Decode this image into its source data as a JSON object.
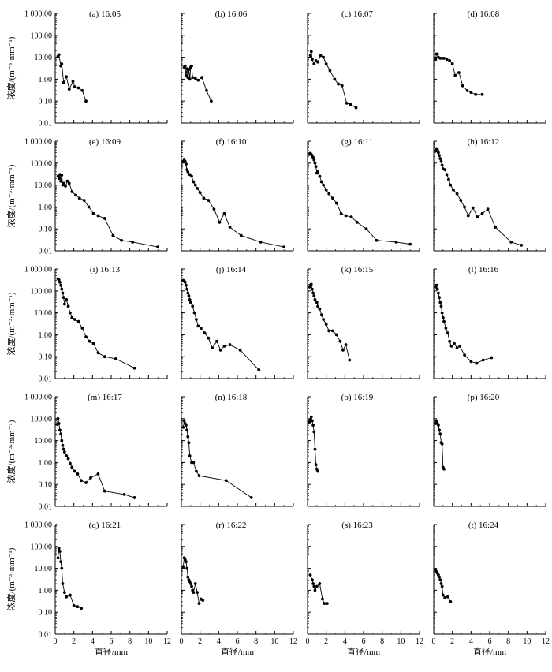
{
  "figure": {
    "ylabel": "浓度/(m⁻³·mm⁻¹)",
    "xlabel": "直径/mm",
    "y_ticks": [
      "1 000.00",
      "100.00",
      "10.00",
      "1.00",
      "0.10",
      "0.01"
    ],
    "x_ticks": [
      "0",
      "2",
      "4",
      "6",
      "8",
      "10",
      "12"
    ]
  },
  "chart_data": [
    {
      "title": "(a) 16:05",
      "type": "line",
      "xlim": [
        0,
        12
      ],
      "ylim": [
        0.01,
        1000
      ],
      "yscale": "log",
      "x": [
        0.3,
        0.4,
        0.6,
        0.7,
        0.9,
        1.2,
        1.5,
        1.9,
        2.1,
        2.5,
        2.9,
        3.3
      ],
      "y": [
        11,
        13,
        4,
        5,
        0.7,
        1.3,
        0.35,
        0.8,
        0.45,
        0.4,
        0.3,
        0.1
      ]
    },
    {
      "title": "(b) 16:06",
      "type": "line",
      "xlim": [
        0,
        12
      ],
      "ylim": [
        0.01,
        1000
      ],
      "yscale": "log",
      "x": [
        0.3,
        0.4,
        0.5,
        0.6,
        0.7,
        0.8,
        0.9,
        1.0,
        1.1,
        1.2,
        1.5,
        1.8,
        2.2,
        2.7,
        3.2
      ],
      "y": [
        3.5,
        4,
        1.5,
        3,
        1.2,
        2.8,
        1,
        3.5,
        4,
        1.2,
        1.1,
        0.9,
        1.2,
        0.3,
        0.1
      ]
    },
    {
      "title": "(c) 16:07",
      "type": "line",
      "xlim": [
        0,
        12
      ],
      "ylim": [
        0.01,
        1000
      ],
      "yscale": "log",
      "x": [
        0.3,
        0.4,
        0.5,
        0.7,
        0.9,
        1.1,
        1.4,
        1.7,
        2.0,
        2.4,
        2.9,
        3.3,
        3.7,
        4.2,
        4.6,
        5.2
      ],
      "y": [
        12,
        18,
        8,
        5,
        7,
        6,
        12,
        10,
        5,
        2.5,
        1,
        0.6,
        0.5,
        0.08,
        0.07,
        0.05
      ]
    },
    {
      "title": "(d) 16:08",
      "type": "line",
      "xlim": [
        0,
        12
      ],
      "ylim": [
        0.01,
        1000
      ],
      "yscale": "log",
      "x": [
        0.2,
        0.3,
        0.4,
        0.5,
        0.7,
        0.9,
        1.1,
        1.4,
        1.7,
        2.0,
        2.3,
        2.7,
        3.1,
        3.6,
        4.0,
        4.5,
        5.2
      ],
      "y": [
        8,
        14,
        14,
        10,
        9,
        9,
        9,
        8,
        7,
        5,
        1.5,
        2,
        0.5,
        0.3,
        0.25,
        0.2,
        0.2
      ]
    },
    {
      "title": "(e) 16:09",
      "type": "line",
      "xlim": [
        0,
        12
      ],
      "ylim": [
        0.01,
        1000
      ],
      "yscale": "log",
      "x": [
        0.3,
        0.4,
        0.5,
        0.6,
        0.7,
        0.8,
        0.9,
        1.1,
        1.3,
        1.5,
        1.8,
        2.2,
        2.6,
        3.1,
        3.6,
        4.1,
        4.6,
        5.3,
        6.2,
        7.1,
        8.3,
        11.0
      ],
      "y": [
        25,
        20,
        30,
        15,
        28,
        10,
        12,
        9,
        15,
        12,
        5,
        3.5,
        2.5,
        2,
        1,
        0.5,
        0.4,
        0.3,
        0.05,
        0.03,
        0.025,
        0.015
      ]
    },
    {
      "title": "(f) 16:10",
      "type": "line",
      "xlim": [
        0,
        12
      ],
      "ylim": [
        0.01,
        1000
      ],
      "yscale": "log",
      "x": [
        0.2,
        0.3,
        0.4,
        0.5,
        0.6,
        0.7,
        0.9,
        1.1,
        1.3,
        1.5,
        1.7,
        2.0,
        2.4,
        2.9,
        3.5,
        4.1,
        4.6,
        5.2,
        6.4,
        8.5,
        11.0
      ],
      "y": [
        120,
        150,
        120,
        90,
        50,
        40,
        30,
        25,
        14,
        10,
        7,
        4.5,
        2.5,
        2,
        0.8,
        0.2,
        0.5,
        0.12,
        0.05,
        0.025,
        0.015
      ]
    },
    {
      "title": "(g) 16:11",
      "type": "line",
      "xlim": [
        0,
        12
      ],
      "ylim": [
        0.01,
        1000
      ],
      "yscale": "log",
      "x": [
        0.2,
        0.3,
        0.4,
        0.5,
        0.6,
        0.7,
        0.8,
        0.9,
        1.0,
        1.1,
        1.3,
        1.5,
        1.7,
        2.0,
        2.3,
        2.7,
        3.1,
        3.6,
        4.1,
        4.7,
        5.3,
        6.3,
        7.4,
        9.5,
        11.0
      ],
      "y": [
        250,
        280,
        250,
        220,
        180,
        140,
        100,
        70,
        35,
        40,
        25,
        14,
        10,
        6,
        4,
        2.5,
        1.5,
        0.5,
        0.4,
        0.35,
        0.2,
        0.1,
        0.03,
        0.025,
        0.02
      ]
    },
    {
      "title": "(h) 16:12",
      "type": "line",
      "xlim": [
        0,
        12
      ],
      "ylim": [
        0.01,
        1000
      ],
      "yscale": "log",
      "x": [
        0.2,
        0.3,
        0.4,
        0.5,
        0.6,
        0.7,
        0.8,
        0.9,
        1.0,
        1.2,
        1.4,
        1.6,
        1.8,
        2.1,
        2.5,
        2.9,
        3.3,
        3.7,
        4.2,
        4.7,
        5.2,
        5.8,
        6.6,
        8.3,
        9.4
      ],
      "y": [
        350,
        420,
        400,
        300,
        220,
        160,
        120,
        80,
        55,
        50,
        30,
        18,
        10,
        6,
        4,
        2,
        1,
        0.4,
        0.9,
        0.35,
        0.5,
        0.8,
        0.12,
        0.025,
        0.018
      ]
    },
    {
      "title": "(i) 16:13",
      "type": "line",
      "xlim": [
        0,
        12
      ],
      "ylim": [
        0.01,
        1000
      ],
      "yscale": "log",
      "x": [
        0.3,
        0.4,
        0.5,
        0.6,
        0.7,
        0.8,
        0.9,
        1.0,
        1.2,
        1.4,
        1.6,
        1.8,
        2.1,
        2.5,
        2.9,
        3.3,
        3.7,
        4.1,
        4.6,
        5.3,
        6.5,
        8.5
      ],
      "y": [
        350,
        320,
        250,
        180,
        120,
        80,
        50,
        25,
        40,
        20,
        10,
        6,
        5,
        4,
        2,
        0.8,
        0.5,
        0.4,
        0.15,
        0.1,
        0.08,
        0.03
      ]
    },
    {
      "title": "(j) 16:14",
      "type": "line",
      "xlim": [
        0,
        12
      ],
      "ylim": [
        0.01,
        1000
      ],
      "yscale": "log",
      "x": [
        0.2,
        0.3,
        0.4,
        0.5,
        0.6,
        0.7,
        0.8,
        0.9,
        1.0,
        1.2,
        1.4,
        1.6,
        1.8,
        2.1,
        2.5,
        2.9,
        3.3,
        3.8,
        4.2,
        4.6,
        5.2,
        6.3,
        8.3
      ],
      "y": [
        300,
        280,
        250,
        180,
        120,
        80,
        60,
        40,
        30,
        20,
        10,
        5,
        2.5,
        2,
        1.2,
        0.7,
        0.25,
        0.5,
        0.2,
        0.3,
        0.35,
        0.2,
        0.025
      ]
    },
    {
      "title": "(k) 16:15",
      "type": "line",
      "xlim": [
        0,
        12
      ],
      "ylim": [
        0.01,
        1000
      ],
      "yscale": "log",
      "x": [
        0.2,
        0.3,
        0.4,
        0.5,
        0.6,
        0.7,
        0.8,
        1.0,
        1.1,
        1.3,
        1.5,
        1.7,
        2.0,
        2.3,
        2.7,
        3.1,
        3.5,
        3.8,
        4.1,
        4.5
      ],
      "y": [
        150,
        180,
        200,
        120,
        80,
        60,
        40,
        30,
        20,
        15,
        8,
        5,
        3,
        1.5,
        1.5,
        1,
        0.5,
        0.2,
        0.35,
        0.07
      ]
    },
    {
      "title": "(l) 16:16",
      "type": "line",
      "xlim": [
        0,
        12
      ],
      "ylim": [
        0.01,
        1000
      ],
      "yscale": "log",
      "x": [
        0.2,
        0.3,
        0.4,
        0.5,
        0.6,
        0.7,
        0.8,
        0.9,
        1.0,
        1.1,
        1.3,
        1.5,
        1.7,
        1.9,
        2.2,
        2.5,
        2.8,
        3.3,
        4.0,
        4.6,
        5.3,
        6.2
      ],
      "y": [
        150,
        180,
        120,
        80,
        50,
        30,
        20,
        10,
        6,
        4,
        2,
        1.2,
        0.5,
        0.3,
        0.4,
        0.25,
        0.3,
        0.12,
        0.06,
        0.05,
        0.07,
        0.09
      ]
    },
    {
      "title": "(m) 16:17",
      "type": "line",
      "xlim": [
        0,
        12
      ],
      "ylim": [
        0.01,
        1000
      ],
      "yscale": "log",
      "x": [
        0.2,
        0.3,
        0.4,
        0.5,
        0.6,
        0.7,
        0.8,
        0.9,
        1.0,
        1.2,
        1.4,
        1.6,
        1.8,
        2.1,
        2.4,
        2.8,
        3.3,
        3.8,
        4.6,
        5.3,
        7.4,
        8.5
      ],
      "y": [
        55,
        100,
        60,
        30,
        20,
        10,
        6,
        4,
        3,
        2,
        1.5,
        0.9,
        0.6,
        0.4,
        0.3,
        0.15,
        0.12,
        0.2,
        0.3,
        0.05,
        0.035,
        0.025
      ]
    },
    {
      "title": "(n) 16:18",
      "type": "line",
      "xlim": [
        0,
        12
      ],
      "ylim": [
        0.01,
        1000
      ],
      "yscale": "log",
      "x": [
        0.2,
        0.3,
        0.4,
        0.5,
        0.6,
        0.7,
        0.8,
        0.9,
        1.1,
        1.3,
        1.6,
        1.9,
        4.8,
        7.5
      ],
      "y": [
        40,
        80,
        60,
        50,
        30,
        15,
        8,
        2,
        1,
        1,
        0.4,
        0.25,
        0.15,
        0.025
      ]
    },
    {
      "title": "(o) 16:19",
      "type": "line",
      "xlim": [
        0,
        12
      ],
      "ylim": [
        0.01,
        1000
      ],
      "yscale": "log",
      "x": [
        0.2,
        0.3,
        0.4,
        0.5,
        0.6,
        0.7,
        0.8,
        0.9,
        1.0,
        1.1
      ],
      "y": [
        70,
        90,
        120,
        80,
        50,
        25,
        4,
        0.8,
        0.5,
        0.4
      ]
    },
    {
      "title": "(p) 16:20",
      "type": "line",
      "xlim": [
        0,
        12
      ],
      "ylim": [
        0.01,
        1000
      ],
      "yscale": "log",
      "x": [
        0.2,
        0.3,
        0.4,
        0.5,
        0.6,
        0.7,
        0.8,
        0.9,
        1.0,
        1.1
      ],
      "y": [
        60,
        80,
        60,
        50,
        30,
        20,
        8,
        7,
        0.6,
        0.5
      ]
    },
    {
      "title": "(q) 16:21",
      "type": "line",
      "xlim": [
        0,
        12
      ],
      "ylim": [
        0.01,
        1000
      ],
      "yscale": "log",
      "x": [
        0.3,
        0.4,
        0.5,
        0.6,
        0.7,
        0.8,
        1.0,
        1.2,
        1.6,
        2.0,
        2.4,
        2.8
      ],
      "y": [
        30,
        80,
        60,
        20,
        10,
        2,
        0.8,
        0.5,
        0.6,
        0.2,
        0.18,
        0.15
      ]
    },
    {
      "title": "(r) 16:22",
      "type": "line",
      "xlim": [
        0,
        12
      ],
      "ylim": [
        0.01,
        1000
      ],
      "yscale": "log",
      "x": [
        0.2,
        0.3,
        0.4,
        0.5,
        0.6,
        0.7,
        0.8,
        0.9,
        1.0,
        1.1,
        1.2,
        1.3,
        1.5,
        1.7,
        1.9,
        2.1,
        2.3
      ],
      "y": [
        12,
        30,
        25,
        20,
        10,
        4,
        3,
        2.5,
        2,
        1.5,
        1,
        0.8,
        2,
        0.8,
        0.25,
        0.4,
        0.35
      ]
    },
    {
      "title": "(s) 16:23",
      "type": "line",
      "xlim": [
        0,
        12
      ],
      "ylim": [
        0.01,
        1000
      ],
      "yscale": "log",
      "x": [
        0.3,
        0.5,
        0.6,
        0.7,
        0.8,
        1.0,
        1.3,
        1.6,
        1.8,
        2.1
      ],
      "y": [
        5,
        3,
        2,
        1.5,
        1,
        1.5,
        2,
        0.4,
        0.25,
        0.25
      ]
    },
    {
      "title": "(t) 16:24",
      "type": "line",
      "xlim": [
        0,
        12
      ],
      "ylim": [
        0.01,
        1000
      ],
      "yscale": "log",
      "x": [
        0.2,
        0.3,
        0.4,
        0.5,
        0.6,
        0.7,
        0.8,
        0.9,
        1.0,
        1.2,
        1.5,
        1.8
      ],
      "y": [
        8,
        7,
        6,
        5,
        4,
        3,
        2,
        1.5,
        0.6,
        0.45,
        0.5,
        0.3
      ]
    }
  ]
}
